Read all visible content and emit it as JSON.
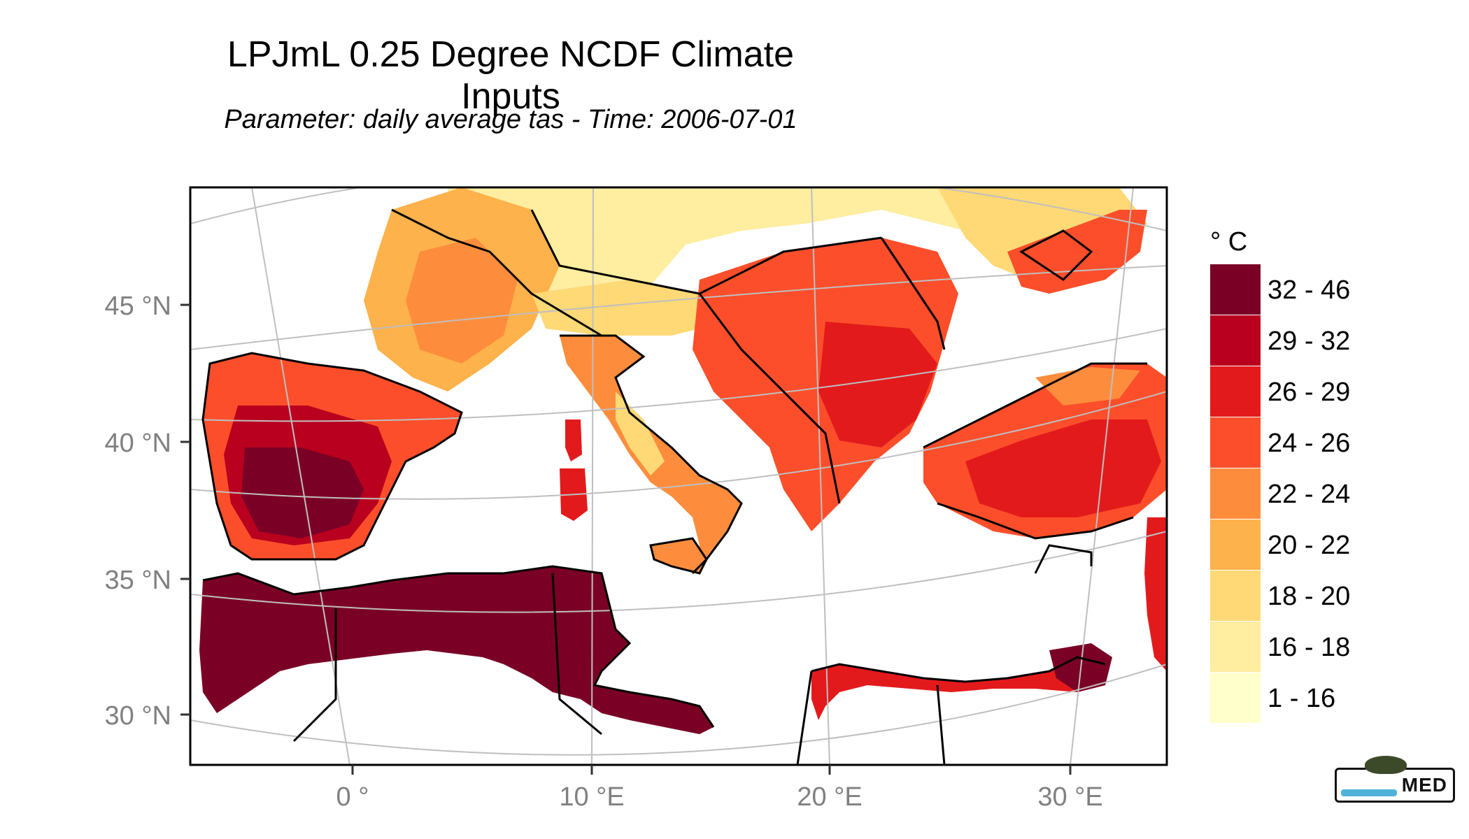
{
  "title": "LPJmL 0.25 Degree NCDF Climate Inputs",
  "subtitle": "Parameter: daily average tas - Time: 2006-07-01",
  "map": {
    "lat_ticks": [
      "45 °N",
      "40 °N",
      "35 °N",
      "30 °N"
    ],
    "lon_ticks": [
      "0 °",
      "10 °E",
      "20 °E",
      "30 °E"
    ],
    "colors": {
      "background": "#ffffff",
      "graticule": "#bfbfbf",
      "borders": "#000000",
      "sea": "#ffffff"
    }
  },
  "legend": {
    "title": "° C",
    "classes": [
      {
        "label": "32 - 46",
        "color": "#7a0026"
      },
      {
        "label": "29 - 32",
        "color": "#b9001f"
      },
      {
        "label": "26 - 29",
        "color": "#e31a1c"
      },
      {
        "label": "24 - 26",
        "color": "#fc4e2a"
      },
      {
        "label": "22 - 24",
        "color": "#fd8d3c"
      },
      {
        "label": "20 - 22",
        "color": "#feb24c"
      },
      {
        "label": "18 - 20",
        "color": "#fed976"
      },
      {
        "label": "16 - 18",
        "color": "#ffeda0"
      },
      {
        "label": "1 - 16",
        "color": "#ffffcc"
      }
    ]
  },
  "logo": {
    "text": "MED"
  }
}
